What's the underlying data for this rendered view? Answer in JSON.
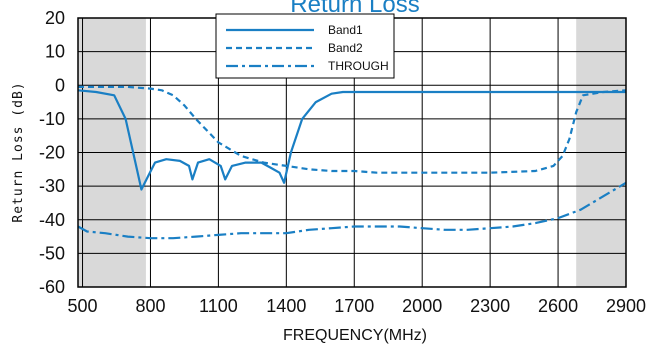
{
  "chart_data": {
    "type": "line",
    "title": "Return Loss",
    "xlabel": "FREQUENCY(MHz)",
    "ylabel": "Return Loss (dB)",
    "xlim": [
      480,
      2900
    ],
    "ylim": [
      -60,
      20
    ],
    "x_ticks": [
      500,
      800,
      1100,
      1400,
      1700,
      2000,
      2300,
      2600,
      2900
    ],
    "y_ticks": [
      20,
      10,
      0,
      -10,
      -20,
      -30,
      -40,
      -50,
      -60
    ],
    "grid": true,
    "legend_position": "top-center",
    "shaded_bands": [
      [
        480,
        780
      ],
      [
        2680,
        2900
      ]
    ],
    "colors": {
      "series": "#1a7fc4",
      "shade": "#d9d9d9",
      "grid": "#000000"
    },
    "series": [
      {
        "name": "Band1",
        "style": "solid",
        "x": [
          480,
          560,
          640,
          690,
          740,
          760,
          790,
          820,
          870,
          930,
          970,
          985,
          1010,
          1060,
          1110,
          1130,
          1160,
          1220,
          1290,
          1330,
          1370,
          1390,
          1420,
          1470,
          1530,
          1600,
          1650,
          1700,
          1800,
          2000,
          2300,
          2600,
          2800,
          2900
        ],
        "values": [
          -1.5,
          -2,
          -3,
          -10,
          -25,
          -31,
          -27,
          -23,
          -22,
          -22.5,
          -24,
          -28,
          -23,
          -22,
          -24,
          -28,
          -24,
          -23,
          -23,
          -24.5,
          -26,
          -29,
          -20,
          -10,
          -5,
          -2.5,
          -2,
          -2,
          -2,
          -2,
          -2,
          -2,
          -2,
          -2
        ]
      },
      {
        "name": "Band2",
        "style": "dashed",
        "x": [
          480,
          600,
          700,
          800,
          850,
          900,
          950,
          1000,
          1100,
          1200,
          1300,
          1400,
          1500,
          1600,
          1700,
          1800,
          2000,
          2300,
          2500,
          2580,
          2620,
          2650,
          2680,
          2710,
          2800,
          2900
        ],
        "values": [
          -0.5,
          -0.5,
          -0.5,
          -1,
          -1.5,
          -3,
          -6,
          -10,
          -17,
          -21,
          -23,
          -24,
          -25,
          -25.5,
          -25.5,
          -26,
          -26,
          -26,
          -25.5,
          -24,
          -21,
          -16,
          -8,
          -3,
          -2,
          -1.5
        ]
      },
      {
        "name": "THROUGH",
        "style": "dashdot",
        "x": [
          480,
          520,
          600,
          700,
          800,
          900,
          1000,
          1100,
          1200,
          1300,
          1400,
          1500,
          1600,
          1700,
          1800,
          1900,
          2000,
          2100,
          2200,
          2300,
          2400,
          2500,
          2600,
          2700,
          2800,
          2900
        ],
        "values": [
          -42,
          -43.5,
          -44,
          -45,
          -45.5,
          -45.5,
          -45,
          -44.5,
          -44,
          -44,
          -44,
          -43,
          -42.5,
          -42,
          -42,
          -42,
          -42.5,
          -43,
          -43,
          -42.5,
          -42,
          -41,
          -39.5,
          -37,
          -33,
          -29
        ]
      }
    ]
  }
}
